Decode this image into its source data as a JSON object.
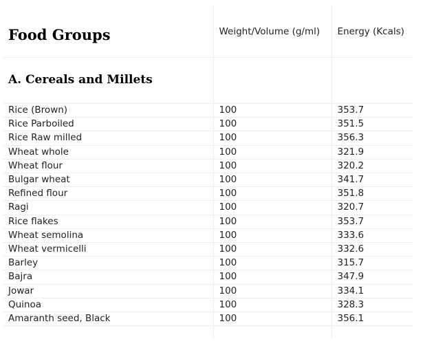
{
  "table": {
    "header": {
      "food_groups": "Food Groups",
      "weight_volume": "Weight/Volume (g/ml)",
      "energy": "Energy (Kcals)"
    },
    "section": {
      "title": "A. Cereals and Millets"
    },
    "rows": [
      {
        "food": "Rice (Brown)",
        "weight": "100",
        "energy": "353.7"
      },
      {
        "food": "Rice Parboiled",
        "weight": "100",
        "energy": "351.5"
      },
      {
        "food": "Rice Raw milled",
        "weight": "100",
        "energy": "356.3"
      },
      {
        "food": "Wheat whole",
        "weight": "100",
        "energy": "321.9"
      },
      {
        "food": "Wheat flour",
        "weight": "100",
        "energy": "320.2"
      },
      {
        "food": "Bulgar wheat",
        "weight": "100",
        "energy": "341.7"
      },
      {
        "food": "Refined flour",
        "weight": "100",
        "energy": "351.8"
      },
      {
        "food": "Ragi",
        "weight": "100",
        "energy": "320.7"
      },
      {
        "food": "Rice flakes",
        "weight": "100",
        "energy": "353.7"
      },
      {
        "food": "Wheat semolina",
        "weight": "100",
        "energy": "333.6"
      },
      {
        "food": "Wheat vermicelli",
        "weight": "100",
        "energy": "332.6"
      },
      {
        "food": "Barley",
        "weight": "100",
        "energy": "315.7"
      },
      {
        "food": "Bajra",
        "weight": "100",
        "energy": "347.9"
      },
      {
        "food": "Jowar",
        "weight": "100",
        "energy": "334.1"
      },
      {
        "food": "Quinoa",
        "weight": "100",
        "energy": "328.3"
      },
      {
        "food": "Amaranth seed, Black",
        "weight": "100",
        "energy": "356.1"
      }
    ]
  }
}
